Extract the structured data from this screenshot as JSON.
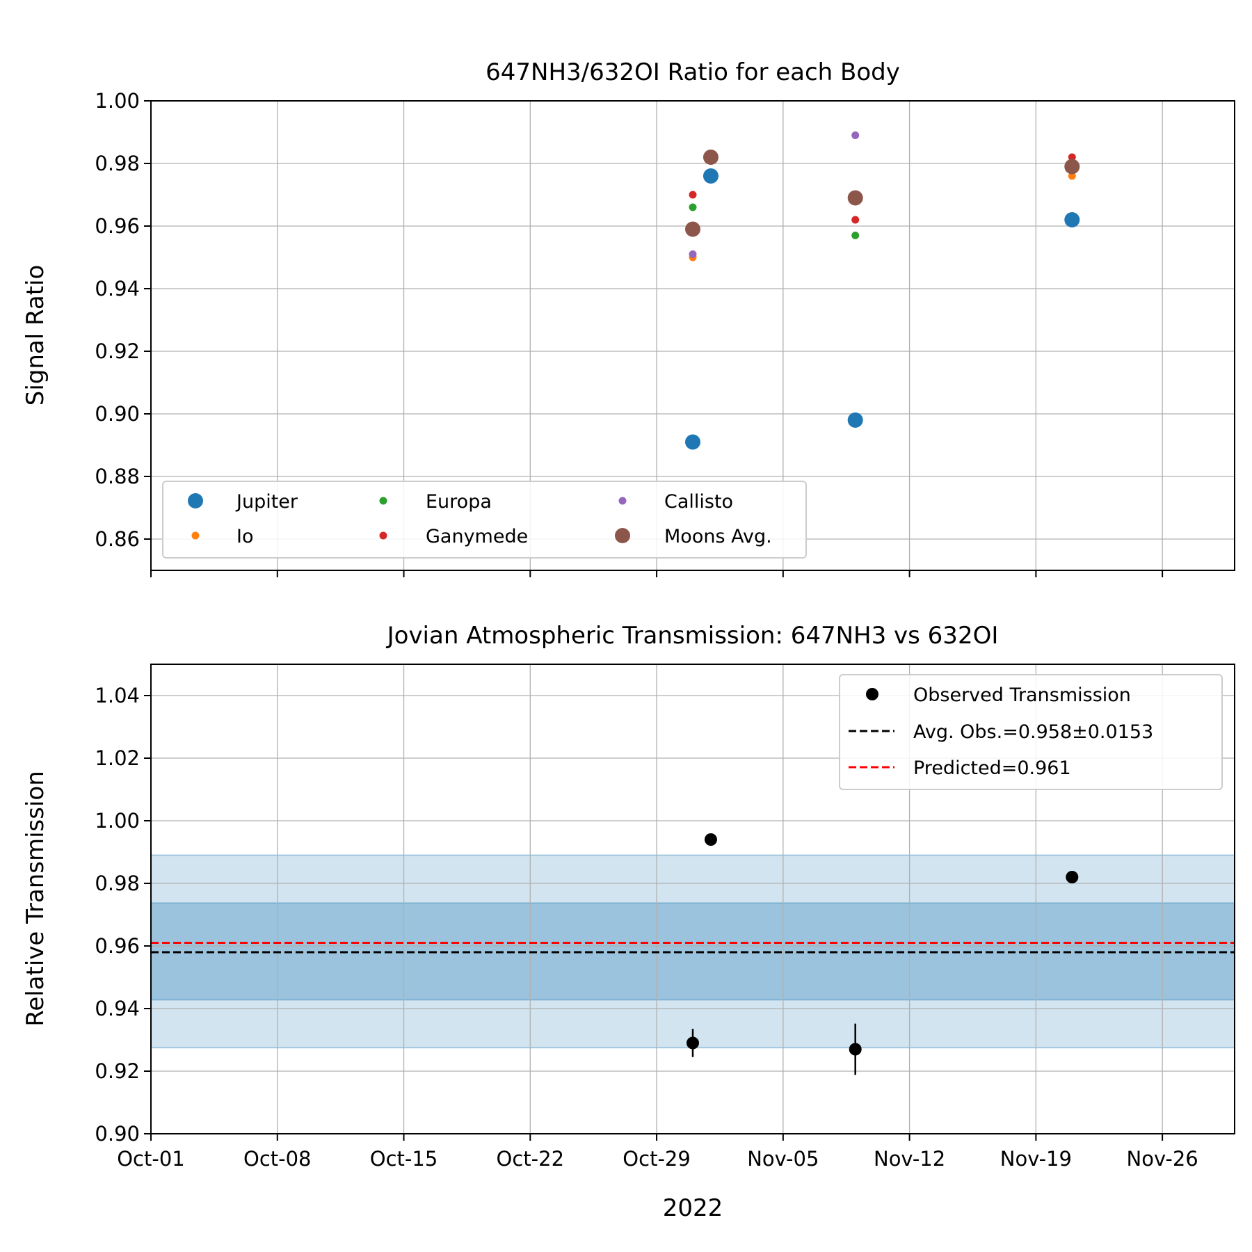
{
  "chart_data": [
    {
      "type": "scatter",
      "title": "647NH3/632OI Ratio for each Body",
      "ylabel": "Signal Ratio",
      "xlabel": "",
      "ylim": [
        0.85,
        1.0
      ],
      "xlim": [
        "2022-10-01",
        "2022-11-30"
      ],
      "yticks": [
        0.86,
        0.88,
        0.9,
        0.92,
        0.94,
        0.96,
        0.98,
        1.0
      ],
      "ytick_labels": [
        "0.86",
        "0.88",
        "0.90",
        "0.92",
        "0.94",
        "0.96",
        "0.98",
        "1.00"
      ],
      "grid": true,
      "legend_position": "lower-left",
      "series": [
        {
          "name": "Jupiter",
          "color": "#1f77b4",
          "marker": "large",
          "x": [
            "2022-10-31",
            "2022-11-01",
            "2022-11-09",
            "2022-11-21"
          ],
          "y": [
            0.891,
            0.976,
            0.898,
            0.962
          ]
        },
        {
          "name": "Io",
          "color": "#ff7f0e",
          "marker": "small",
          "x": [
            "2022-10-31",
            "2022-11-21"
          ],
          "y": [
            0.95,
            0.976
          ]
        },
        {
          "name": "Europa",
          "color": "#2ca02c",
          "marker": "small",
          "x": [
            "2022-10-31",
            "2022-11-09"
          ],
          "y": [
            0.966,
            0.957
          ]
        },
        {
          "name": "Ganymede",
          "color": "#d62728",
          "marker": "small",
          "x": [
            "2022-10-31",
            "2022-11-09",
            "2022-11-21"
          ],
          "y": [
            0.97,
            0.962,
            0.982
          ]
        },
        {
          "name": "Callisto",
          "color": "#9467bd",
          "marker": "small",
          "x": [
            "2022-10-31",
            "2022-11-09"
          ],
          "y": [
            0.951,
            0.989
          ]
        },
        {
          "name": "Moons Avg.",
          "color": "#8c564b",
          "marker": "large",
          "x": [
            "2022-10-31",
            "2022-11-01",
            "2022-11-09",
            "2022-11-21"
          ],
          "y": [
            0.959,
            0.982,
            0.969,
            0.979
          ]
        }
      ]
    },
    {
      "type": "scatter",
      "title": "Jovian Atmospheric Transmission: 647NH3 vs 632OI",
      "ylabel": "Relative Transmission",
      "xlabel": "2022",
      "ylim": [
        0.9,
        1.05
      ],
      "xlim": [
        "2022-10-01",
        "2022-11-30"
      ],
      "yticks": [
        0.9,
        0.92,
        0.94,
        0.96,
        0.98,
        1.0,
        1.02,
        1.04
      ],
      "ytick_labels": [
        "0.90",
        "0.92",
        "0.94",
        "0.96",
        "0.98",
        "1.00",
        "1.02",
        "1.04"
      ],
      "xticks": [
        "2022-10-01",
        "2022-10-08",
        "2022-10-15",
        "2022-10-22",
        "2022-10-29",
        "2022-11-05",
        "2022-11-12",
        "2022-11-19",
        "2022-11-26"
      ],
      "xtick_labels": [
        "Oct-01",
        "Oct-08",
        "Oct-15",
        "Oct-22",
        "Oct-29",
        "Nov-05",
        "Nov-12",
        "Nov-19",
        "Nov-26"
      ],
      "grid": true,
      "legend_position": "upper-right",
      "series": [
        {
          "name": "Observed Transmission",
          "color": "#000000",
          "x": [
            "2022-10-31",
            "2022-11-01",
            "2022-11-09",
            "2022-11-21"
          ],
          "y": [
            0.929,
            0.994,
            0.927,
            0.982
          ],
          "yerr": [
            0.0045,
            0.0,
            0.0082,
            0.0
          ]
        }
      ],
      "hlines": [
        {
          "name": "Avg. Obs.=0.958±0.0153",
          "y": 0.958,
          "color": "#000000",
          "style": "dashed"
        },
        {
          "name": "Predicted=0.961",
          "y": 0.961,
          "color": "#ff0000",
          "style": "dashed"
        }
      ],
      "bands": [
        {
          "low": 0.9275,
          "high": 0.989,
          "color": "#1f77b4",
          "opacity": 0.2
        },
        {
          "low": 0.9428,
          "high": 0.9737,
          "color": "#1f77b4",
          "opacity": 0.3
        }
      ]
    }
  ]
}
